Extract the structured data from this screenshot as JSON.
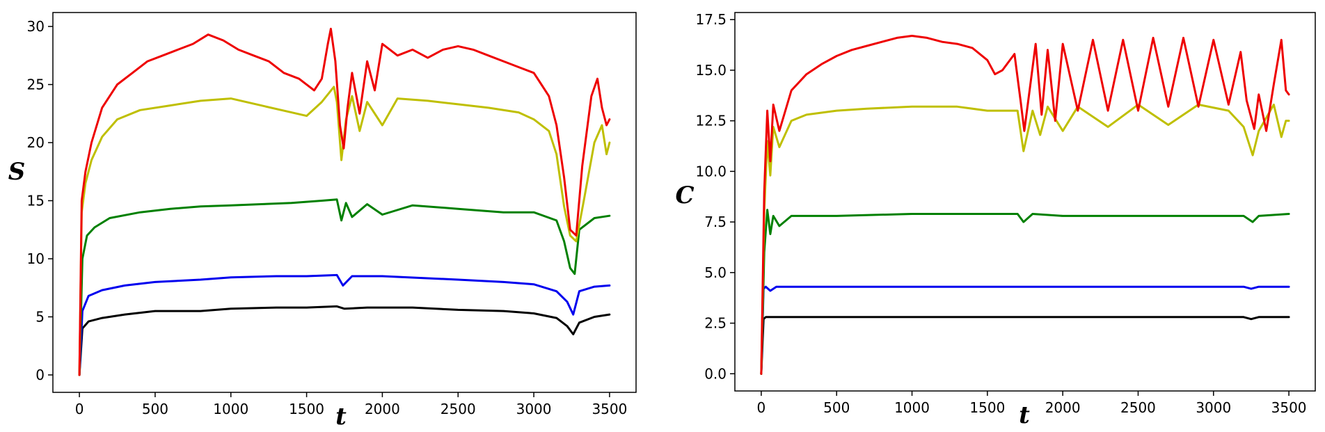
{
  "chart_data": [
    {
      "type": "line",
      "title": "",
      "xlabel": "t",
      "ylabel": "S",
      "xlim": [
        -175,
        3675
      ],
      "ylim": [
        -1.5,
        31.2
      ],
      "xticks": [
        0,
        500,
        1000,
        1500,
        2000,
        2500,
        3000,
        3500
      ],
      "xtick_labels": [
        "0",
        "500",
        "1000",
        "1500",
        "2000",
        "2500",
        "3000",
        "3500"
      ],
      "yticks": [
        0,
        5,
        10,
        15,
        20,
        25,
        30
      ],
      "ytick_labels": [
        "0",
        "5",
        "10",
        "15",
        "20",
        "25",
        "30"
      ],
      "legend": "none",
      "grid": false,
      "series": [
        {
          "name": "black",
          "color": "#000000",
          "x": [
            0,
            20,
            60,
            150,
            300,
            500,
            800,
            1000,
            1300,
            1500,
            1700,
            1750,
            1900,
            2200,
            2500,
            2800,
            3000,
            3150,
            3220,
            3260,
            3300,
            3400,
            3500
          ],
          "y": [
            0,
            4.0,
            4.6,
            4.9,
            5.2,
            5.5,
            5.5,
            5.7,
            5.8,
            5.8,
            5.9,
            5.7,
            5.8,
            5.8,
            5.6,
            5.5,
            5.3,
            4.9,
            4.2,
            3.5,
            4.5,
            5.0,
            5.2
          ]
        },
        {
          "name": "blue",
          "color": "#0000ee",
          "x": [
            0,
            20,
            60,
            150,
            300,
            500,
            800,
            1000,
            1300,
            1500,
            1700,
            1740,
            1800,
            2000,
            2500,
            2800,
            3000,
            3150,
            3220,
            3260,
            3300,
            3400,
            3500
          ],
          "y": [
            0,
            5.5,
            6.8,
            7.3,
            7.7,
            8.0,
            8.2,
            8.4,
            8.5,
            8.5,
            8.6,
            7.7,
            8.5,
            8.5,
            8.2,
            8.0,
            7.8,
            7.2,
            6.3,
            5.2,
            7.2,
            7.6,
            7.7
          ]
        },
        {
          "name": "green",
          "color": "#008000",
          "x": [
            0,
            20,
            50,
            100,
            200,
            400,
            600,
            800,
            1000,
            1200,
            1400,
            1600,
            1700,
            1730,
            1760,
            1800,
            1900,
            2000,
            2200,
            2500,
            2800,
            3000,
            3150,
            3200,
            3240,
            3270,
            3300,
            3400,
            3500
          ],
          "y": [
            0,
            10.0,
            12.0,
            12.7,
            13.5,
            14.0,
            14.3,
            14.5,
            14.6,
            14.7,
            14.8,
            15.0,
            15.1,
            13.3,
            14.8,
            13.6,
            14.7,
            13.8,
            14.6,
            14.3,
            14.0,
            14.0,
            13.3,
            11.5,
            9.2,
            8.7,
            12.5,
            13.5,
            13.7
          ]
        },
        {
          "name": "yellow",
          "color": "#bfbf00",
          "x": [
            0,
            15,
            40,
            80,
            150,
            250,
            400,
            600,
            800,
            1000,
            1200,
            1400,
            1500,
            1600,
            1680,
            1700,
            1730,
            1760,
            1800,
            1850,
            1900,
            2000,
            2100,
            2300,
            2500,
            2700,
            2900,
            3000,
            3100,
            3150,
            3200,
            3240,
            3280,
            3330,
            3400,
            3450,
            3480,
            3500
          ],
          "y": [
            0,
            14.0,
            16.5,
            18.5,
            20.5,
            22.0,
            22.8,
            23.2,
            23.6,
            23.8,
            23.2,
            22.6,
            22.3,
            23.5,
            24.8,
            23.5,
            18.5,
            22.0,
            24.0,
            21.0,
            23.5,
            21.5,
            23.8,
            23.6,
            23.3,
            23.0,
            22.6,
            22.0,
            21.0,
            19.0,
            14.5,
            12.0,
            11.5,
            15.0,
            20.0,
            21.5,
            19.0,
            20.0
          ]
        },
        {
          "name": "red",
          "color": "#ee0000",
          "x": [
            0,
            15,
            40,
            80,
            150,
            250,
            350,
            450,
            550,
            650,
            750,
            850,
            950,
            1050,
            1150,
            1250,
            1350,
            1450,
            1550,
            1600,
            1640,
            1660,
            1690,
            1720,
            1745,
            1770,
            1800,
            1850,
            1900,
            1950,
            2000,
            2100,
            2200,
            2300,
            2400,
            2500,
            2600,
            2700,
            2800,
            2900,
            3000,
            3050,
            3100,
            3150,
            3200,
            3240,
            3280,
            3320,
            3380,
            3420,
            3450,
            3480,
            3500
          ],
          "y": [
            0,
            15.0,
            17.5,
            20.0,
            23.0,
            25.0,
            26.0,
            27.0,
            27.5,
            28.0,
            28.5,
            29.3,
            28.8,
            28.0,
            27.5,
            27.0,
            26.0,
            25.5,
            24.5,
            25.5,
            28.5,
            29.8,
            27.0,
            21.5,
            19.5,
            23.0,
            26.0,
            22.5,
            27.0,
            24.5,
            28.5,
            27.5,
            28.0,
            27.3,
            28.0,
            28.3,
            28.0,
            27.5,
            27.0,
            26.5,
            26.0,
            25.0,
            24.0,
            21.5,
            17.0,
            12.5,
            12.0,
            18.0,
            24.0,
            25.5,
            23.0,
            21.5,
            22.0
          ]
        }
      ]
    },
    {
      "type": "line",
      "title": "",
      "xlabel": "t",
      "ylabel": "C",
      "xlim": [
        -175,
        3675
      ],
      "ylim": [
        -0.85,
        17.85
      ],
      "xticks": [
        0,
        500,
        1000,
        1500,
        2000,
        2500,
        3000,
        3500
      ],
      "xtick_labels": [
        "0",
        "500",
        "1000",
        "1500",
        "2000",
        "2500",
        "3000",
        "3500"
      ],
      "yticks": [
        0.0,
        2.5,
        5.0,
        7.5,
        10.0,
        12.5,
        15.0,
        17.5
      ],
      "ytick_labels": [
        "0.0",
        "2.5",
        "5.0",
        "7.5",
        "10.0",
        "12.5",
        "15.0",
        "17.5"
      ],
      "legend": "none",
      "grid": false,
      "series": [
        {
          "name": "black",
          "color": "#000000",
          "x": [
            0,
            15,
            30,
            100,
            500,
            1000,
            1500,
            2000,
            2500,
            3000,
            3200,
            3250,
            3300,
            3500
          ],
          "y": [
            0,
            2.7,
            2.8,
            2.8,
            2.8,
            2.8,
            2.8,
            2.8,
            2.8,
            2.8,
            2.8,
            2.7,
            2.8,
            2.8
          ]
        },
        {
          "name": "blue",
          "color": "#0000ee",
          "x": [
            0,
            15,
            30,
            60,
            100,
            500,
            1000,
            1500,
            2000,
            2500,
            3000,
            3200,
            3250,
            3300,
            3500
          ],
          "y": [
            0,
            4.2,
            4.3,
            4.1,
            4.3,
            4.3,
            4.3,
            4.3,
            4.3,
            4.3,
            4.3,
            4.3,
            4.2,
            4.3,
            4.3
          ]
        },
        {
          "name": "green",
          "color": "#008000",
          "x": [
            0,
            20,
            40,
            60,
            80,
            120,
            200,
            500,
            1000,
            1500,
            1700,
            1740,
            1800,
            2000,
            2500,
            3000,
            3200,
            3260,
            3300,
            3500
          ],
          "y": [
            0,
            6.0,
            8.1,
            6.9,
            7.8,
            7.3,
            7.8,
            7.8,
            7.9,
            7.9,
            7.9,
            7.5,
            7.9,
            7.8,
            7.8,
            7.8,
            7.8,
            7.5,
            7.8,
            7.9
          ]
        },
        {
          "name": "yellow",
          "color": "#bfbf00",
          "x": [
            0,
            20,
            40,
            60,
            80,
            120,
            200,
            300,
            500,
            700,
            1000,
            1300,
            1500,
            1700,
            1740,
            1800,
            1850,
            1900,
            2000,
            2100,
            2300,
            2500,
            2700,
            2900,
            3100,
            3200,
            3260,
            3300,
            3400,
            3450,
            3480,
            3500
          ],
          "y": [
            0,
            8.0,
            11.5,
            9.8,
            12.2,
            11.2,
            12.5,
            12.8,
            13.0,
            13.1,
            13.2,
            13.2,
            13.0,
            13.0,
            11.0,
            13.0,
            11.8,
            13.2,
            12.0,
            13.2,
            12.2,
            13.3,
            12.3,
            13.3,
            13.0,
            12.2,
            10.8,
            12.0,
            13.3,
            11.7,
            12.5,
            12.5
          ]
        },
        {
          "name": "red",
          "color": "#ee0000",
          "x": [
            0,
            20,
            40,
            60,
            80,
            120,
            200,
            300,
            400,
            500,
            600,
            700,
            800,
            900,
            1000,
            1100,
            1200,
            1300,
            1400,
            1500,
            1550,
            1600,
            1680,
            1720,
            1745,
            1780,
            1820,
            1860,
            1900,
            1950,
            2000,
            2100,
            2200,
            2300,
            2400,
            2500,
            2600,
            2700,
            2800,
            2900,
            3000,
            3100,
            3180,
            3220,
            3270,
            3300,
            3350,
            3400,
            3450,
            3480,
            3500
          ],
          "y": [
            0,
            9.0,
            13.0,
            10.5,
            13.3,
            12.0,
            14.0,
            14.8,
            15.3,
            15.7,
            16.0,
            16.2,
            16.4,
            16.6,
            16.7,
            16.6,
            16.4,
            16.3,
            16.1,
            15.5,
            14.8,
            15.0,
            15.8,
            13.5,
            12.0,
            14.0,
            16.3,
            12.8,
            16.0,
            12.5,
            16.3,
            13.0,
            16.5,
            13.0,
            16.5,
            13.0,
            16.6,
            13.2,
            16.6,
            13.2,
            16.5,
            13.3,
            15.9,
            13.5,
            12.1,
            13.8,
            12.0,
            14.3,
            16.5,
            14.0,
            13.8
          ]
        }
      ]
    }
  ]
}
